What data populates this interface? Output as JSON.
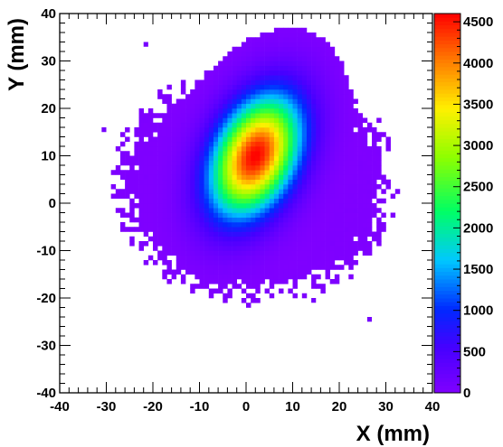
{
  "chart_data": {
    "type": "heatmap",
    "title": "",
    "xlabel": "X (mm)",
    "ylabel": "Y (mm)",
    "xlim": [
      -40,
      40
    ],
    "ylim": [
      -40,
      40
    ],
    "zlim": [
      0,
      4600
    ],
    "x_ticks": [
      "-40",
      "-30",
      "-20",
      "-10",
      "0",
      "10",
      "20",
      "30",
      "40"
    ],
    "y_ticks": [
      "-40",
      "-30",
      "-20",
      "-10",
      "0",
      "10",
      "20",
      "30",
      "40"
    ],
    "z_ticks": [
      "0",
      "500",
      "1000",
      "1500",
      "2000",
      "2500",
      "3000",
      "3500",
      "4000",
      "4500"
    ],
    "bin_size_mm": 1,
    "grid": false,
    "colormap": "rainbow (violet-blue-cyan-green-yellow-red)",
    "peak": {
      "x": 2,
      "y": 10,
      "z": 4600
    },
    "core": {
      "center": [
        2,
        10
      ],
      "sigma_x": 6.5,
      "sigma_y": 8.5,
      "correlation": 0.35
    },
    "halo_region": {
      "x_range": [
        -28,
        32
      ],
      "y_range": [
        -22,
        30
      ],
      "description": "low-count (violet) area surrounding the core"
    },
    "isolated_points": [
      [
        -31,
        15
      ],
      [
        26,
        -25
      ],
      [
        -22,
        33
      ],
      [
        14,
        -21
      ]
    ]
  },
  "colors": {
    "low": "#8000ff",
    "mid_low": "#0040ff",
    "mid": "#00e0ff",
    "mid_high": "#00ff40",
    "high_mid": "#ffff00",
    "high": "#ff0000"
  }
}
